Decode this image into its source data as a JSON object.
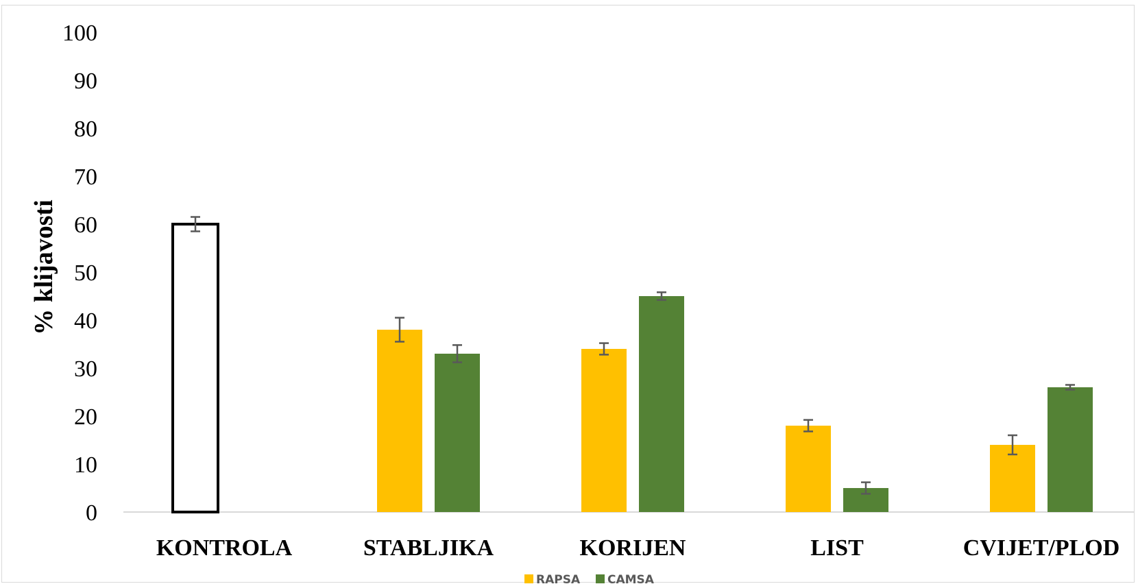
{
  "chart_data": {
    "type": "bar",
    "ylabel": "% klijavosti",
    "xlabel": "",
    "ylim": [
      0,
      100
    ],
    "yticks": [
      0,
      10,
      20,
      30,
      40,
      50,
      60,
      70,
      80,
      90,
      100
    ],
    "grid": false,
    "legend_position": "bottom",
    "categories": [
      "KONTROLA",
      "STABLJIKA",
      "KORIJEN",
      "LIST",
      "CVIJET/PLOD"
    ],
    "control": {
      "value": 60,
      "error": 1.5,
      "fill": "#ffffff",
      "stroke": "#000000"
    },
    "series": [
      {
        "name": "RAPSA",
        "color": "#FFC000",
        "values": [
          null,
          38,
          34,
          18,
          14
        ],
        "errors": [
          null,
          2.5,
          1.2,
          1.2,
          2.0
        ]
      },
      {
        "name": "CAMSA",
        "color": "#548235",
        "values": [
          null,
          33,
          45,
          5,
          26
        ],
        "errors": [
          null,
          1.8,
          0.8,
          1.2,
          0.5
        ]
      }
    ]
  }
}
